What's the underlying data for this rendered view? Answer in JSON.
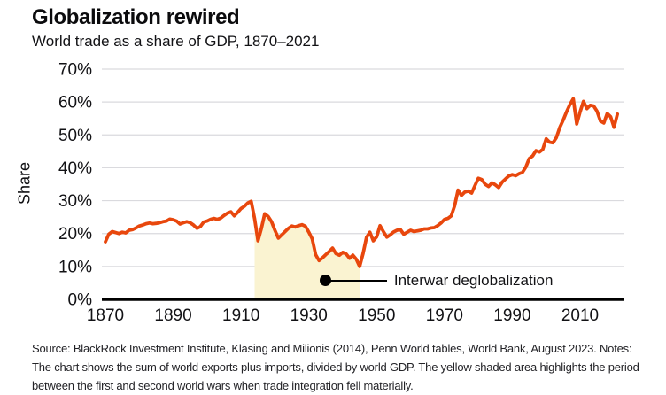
{
  "header": {
    "title": "Globalization rewired",
    "subtitle": "World trade as a share of GDP, 1870–2021"
  },
  "chart_data": {
    "type": "line",
    "title": "Globalization rewired",
    "subtitle": "World trade as a share of GDP, 1870–2021",
    "ylabel": "Share",
    "xlabel": "",
    "ylim": [
      0,
      70
    ],
    "ytick_labels": [
      "0%",
      "10%",
      "20%",
      "30%",
      "40%",
      "50%",
      "60%",
      "70%"
    ],
    "xticks": [
      1870,
      1890,
      1910,
      1930,
      1950,
      1970,
      1990,
      2010
    ],
    "grid": "horizontal",
    "legend": "none",
    "series": [
      {
        "name": "World trade as a share of GDP (%)",
        "x_start": 1870,
        "x_step": 1,
        "values": [
          17.5,
          19.8,
          20.6,
          20.3,
          20.0,
          20.4,
          20.2,
          21.0,
          21.2,
          21.7,
          22.3,
          22.6,
          23.0,
          23.2,
          23.0,
          23.1,
          23.3,
          23.6,
          23.8,
          24.4,
          24.2,
          23.8,
          22.9,
          23.3,
          23.6,
          23.3,
          22.6,
          21.6,
          22.1,
          23.5,
          23.8,
          24.3,
          24.6,
          24.3,
          24.7,
          25.5,
          26.2,
          26.6,
          25.4,
          26.4,
          27.6,
          28.3,
          29.3,
          29.8,
          24.5,
          17.8,
          21.5,
          26.0,
          25.2,
          23.6,
          21.0,
          18.6,
          19.6,
          20.6,
          21.6,
          22.3,
          22.0,
          22.4,
          22.7,
          22.2,
          20.4,
          18.4,
          13.6,
          11.8,
          12.6,
          13.6,
          14.5,
          15.6,
          13.9,
          13.4,
          14.3,
          13.8,
          12.5,
          13.4,
          12.2,
          10.0,
          14.0,
          18.8,
          20.4,
          17.8,
          19.0,
          22.4,
          20.6,
          18.9,
          19.6,
          20.5,
          21.0,
          21.2,
          19.8,
          20.4,
          21.0,
          20.6,
          20.8,
          21.0,
          21.4,
          21.4,
          21.7,
          21.8,
          22.4,
          23.2,
          24.3,
          24.6,
          25.4,
          28.4,
          33.2,
          31.6,
          32.6,
          32.9,
          32.3,
          34.6,
          36.8,
          36.4,
          35.0,
          34.3,
          35.4,
          34.8,
          34.0,
          35.6,
          36.6,
          37.5,
          37.9,
          37.6,
          38.2,
          38.6,
          40.2,
          42.8,
          43.6,
          45.2,
          44.8,
          45.6,
          48.8,
          47.8,
          47.6,
          49.2,
          52.2,
          54.5,
          57.0,
          59.2,
          61.0,
          53.3,
          57.0,
          60.2,
          58.0,
          59.0,
          58.8,
          57.2,
          54.2,
          53.6,
          56.5,
          55.5,
          52.3,
          56.3
        ]
      }
    ],
    "highlight_region": {
      "from": 1914,
      "to": 1945
    },
    "annotation": {
      "label": "Interwar deglobalization",
      "point_year": 1935,
      "point_value": 5.7
    }
  },
  "source": {
    "lines": [
      "Source: BlackRock Investment Institute, Klasing and Milionis (2014), Penn World tables, World Bank, August 2023. Notes:",
      "The chart shows the sum of world exports plus imports, divided by world GDP. The yellow shaded area highlights the period",
      "between the first and second world wars when trade integration fell materially."
    ]
  },
  "colors": {
    "line": "#e8470d",
    "highlight_fill": "#faf3d1",
    "grid": "#dadade",
    "axis": "#000000",
    "text": "#121215"
  }
}
